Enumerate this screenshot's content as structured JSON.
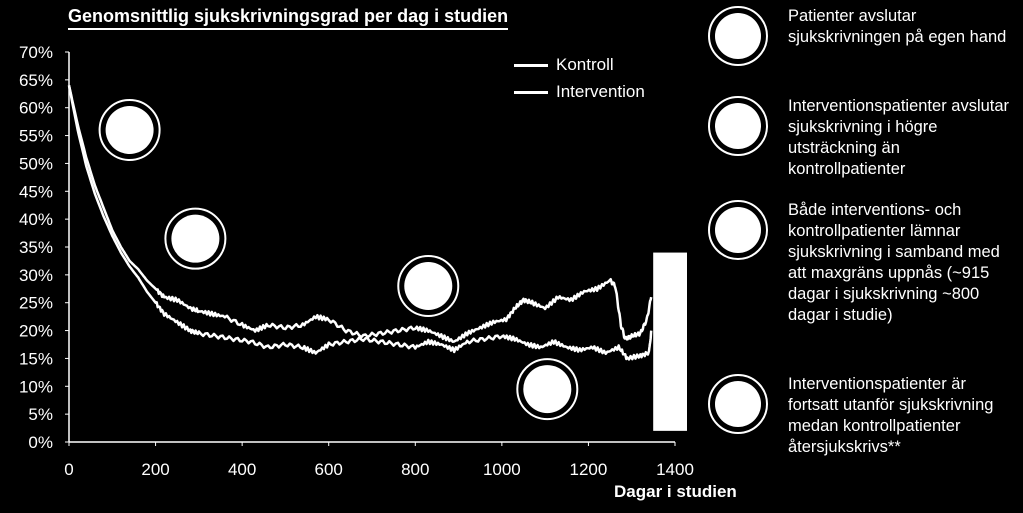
{
  "chart_data": {
    "type": "line",
    "title": "Genomsnittlig sjukskrivningsgrad per dag i studien",
    "xlabel": "Dagar i studien",
    "ylabel": "",
    "xlim": [
      0,
      1400
    ],
    "ylim": [
      0,
      70
    ],
    "x_ticks": [
      "0",
      "200",
      "400",
      "600",
      "800",
      "1000",
      "1200",
      "1400"
    ],
    "y_ticks": [
      "0%",
      "5%",
      "10%",
      "15%",
      "20%",
      "25%",
      "30%",
      "35%",
      "40%",
      "45%",
      "50%",
      "55%",
      "60%",
      "65%",
      "70%"
    ],
    "legend_position": "top-center",
    "grid": false,
    "series": [
      {
        "name": "Kontroll",
        "points": [
          [
            0,
            64
          ],
          [
            20,
            57
          ],
          [
            40,
            51
          ],
          [
            60,
            46
          ],
          [
            80,
            42
          ],
          [
            100,
            38
          ],
          [
            120,
            35
          ],
          [
            140,
            32.5
          ],
          [
            160,
            31
          ],
          [
            180,
            29
          ],
          [
            200,
            27.5
          ],
          [
            220,
            26
          ],
          [
            250,
            25.5
          ],
          [
            280,
            24
          ],
          [
            300,
            23.5
          ],
          [
            330,
            23
          ],
          [
            360,
            22.5
          ],
          [
            400,
            21
          ],
          [
            430,
            20
          ],
          [
            460,
            21
          ],
          [
            500,
            20.5
          ],
          [
            540,
            21
          ],
          [
            570,
            22.5
          ],
          [
            600,
            22
          ],
          [
            640,
            20
          ],
          [
            680,
            19
          ],
          [
            720,
            19.5
          ],
          [
            760,
            20
          ],
          [
            800,
            20.5
          ],
          [
            830,
            20
          ],
          [
            860,
            19
          ],
          [
            890,
            18
          ],
          [
            920,
            19.5
          ],
          [
            950,
            20.5
          ],
          [
            980,
            21.5
          ],
          [
            1010,
            22
          ],
          [
            1030,
            24
          ],
          [
            1050,
            25.5
          ],
          [
            1070,
            25
          ],
          [
            1100,
            24
          ],
          [
            1130,
            26
          ],
          [
            1160,
            25.5
          ],
          [
            1190,
            27
          ],
          [
            1220,
            27.5
          ],
          [
            1250,
            29
          ],
          [
            1262,
            28
          ],
          [
            1275,
            21
          ],
          [
            1285,
            18.5
          ],
          [
            1300,
            19
          ],
          [
            1320,
            19.5
          ],
          [
            1335,
            22
          ],
          [
            1345,
            26
          ]
        ]
      },
      {
        "name": "Intervention",
        "points": [
          [
            0,
            64
          ],
          [
            20,
            56
          ],
          [
            40,
            49.5
          ],
          [
            60,
            44.5
          ],
          [
            80,
            40.5
          ],
          [
            100,
            37
          ],
          [
            120,
            34
          ],
          [
            140,
            31.5
          ],
          [
            160,
            29.5
          ],
          [
            180,
            27
          ],
          [
            200,
            25
          ],
          [
            220,
            23
          ],
          [
            250,
            21.5
          ],
          [
            280,
            20
          ],
          [
            300,
            19.5
          ],
          [
            340,
            19
          ],
          [
            380,
            18.5
          ],
          [
            420,
            18
          ],
          [
            460,
            17
          ],
          [
            500,
            17.5
          ],
          [
            540,
            17
          ],
          [
            570,
            16
          ],
          [
            600,
            17.5
          ],
          [
            640,
            18
          ],
          [
            680,
            18.5
          ],
          [
            720,
            18
          ],
          [
            760,
            17.5
          ],
          [
            800,
            17
          ],
          [
            830,
            18
          ],
          [
            860,
            17.5
          ],
          [
            890,
            16.5
          ],
          [
            920,
            18
          ],
          [
            960,
            18.5
          ],
          [
            1000,
            19
          ],
          [
            1030,
            18.5
          ],
          [
            1060,
            17.5
          ],
          [
            1090,
            17
          ],
          [
            1120,
            18
          ],
          [
            1150,
            17
          ],
          [
            1180,
            16.5
          ],
          [
            1210,
            17
          ],
          [
            1240,
            16
          ],
          [
            1270,
            17
          ],
          [
            1290,
            15
          ],
          [
            1320,
            15.5
          ],
          [
            1340,
            16
          ],
          [
            1345,
            20
          ]
        ]
      }
    ]
  },
  "legend": [
    {
      "label": "Kontroll"
    },
    {
      "label": "Intervention"
    }
  ],
  "annotations": [
    {
      "x": 140,
      "y": 56
    },
    {
      "x": 292,
      "y": 36.5
    },
    {
      "x": 830,
      "y": 28
    },
    {
      "x": 1105,
      "y": 9.5
    }
  ],
  "end_bar": {
    "x_from": 1345,
    "x_to": 1400,
    "y_from": 2,
    "y_to": 34
  },
  "notes": [
    {
      "text": "Patienter avslutar sjukskrivningen på egen hand"
    },
    {
      "text": "Interventionspatienter avslutar sjukskrivning i högre utsträckning än kontrollpatienter"
    },
    {
      "text": "Både interventions- och kontrollpatienter lämnar sjukskrivning i samband med att maxgräns uppnås (~915 dagar i sjukskrivning ~800 dagar i studie)"
    },
    {
      "text": "Interventionspatienter är fortsatt utanför sjukskrivning medan kontrollpatienter återsjukskrivs**"
    }
  ]
}
